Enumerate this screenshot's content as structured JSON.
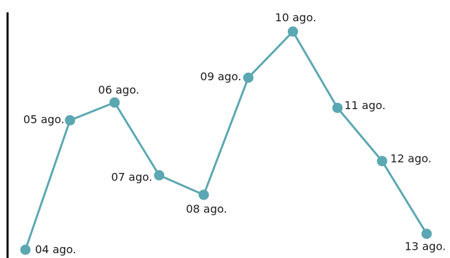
{
  "chart_data": {
    "type": "line",
    "title": "",
    "xlabel": "",
    "ylabel": "",
    "grid": false,
    "legend": "none",
    "line_color": "#5ba7b2",
    "axis_color": "#000000",
    "x": [
      "04 ago.",
      "05 ago.",
      "06 ago.",
      "07 ago.",
      "08 ago.",
      "09 ago.",
      "10 ago.",
      "11 ago.",
      "12 ago.",
      "13 ago."
    ],
    "values": [
      1.0,
      8.3,
      9.3,
      5.2,
      4.1,
      10.7,
      13.3,
      9.0,
      6.0,
      1.9
    ],
    "ylim": [
      0,
      14.5
    ]
  }
}
